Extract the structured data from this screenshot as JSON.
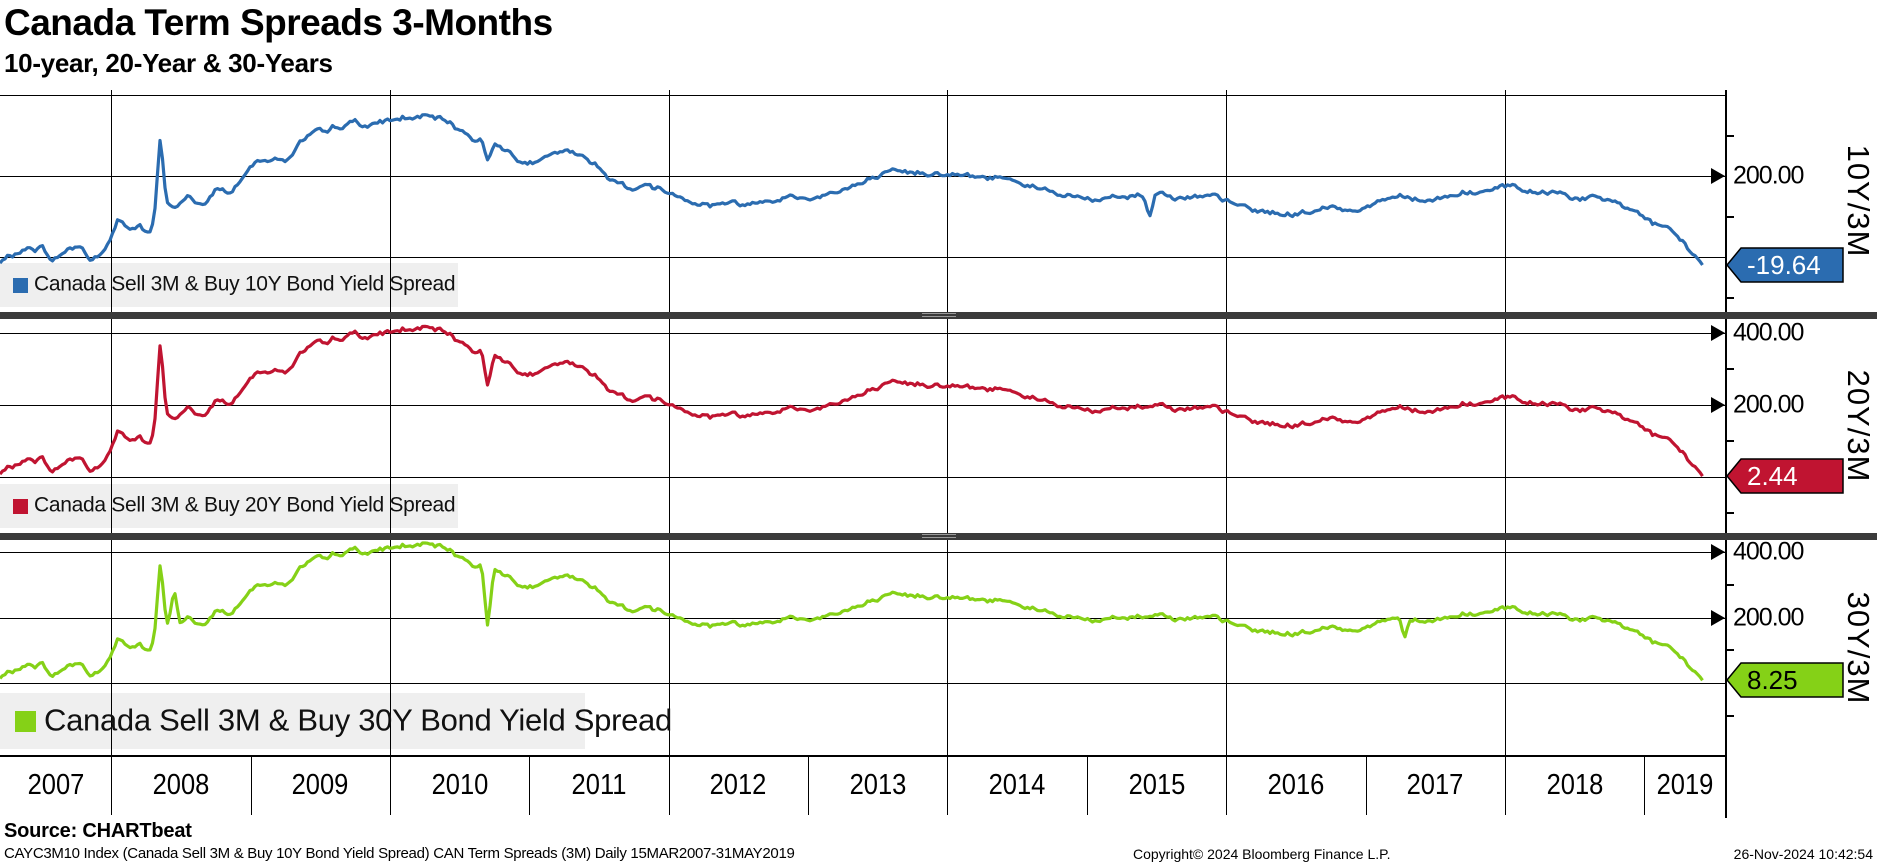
{
  "header": {
    "title": "Canada Term Spreads 3-Months",
    "subtitle": "10-year, 20-Year & 30-Years"
  },
  "footer": {
    "source": "Source: CHARTbeat",
    "ticker_line": "CAYC3M10 Index (Canada Sell 3M & Buy 10Y Bond Yield Spread) CAN Term Spreads (3M)  Daily 15MAR2007-31MAY2019",
    "copyright": "Copyright© 2024 Bloomberg Finance L.P.",
    "timestamp": "26-Nov-2024 10:42:54"
  },
  "chart_data": {
    "type": "line",
    "title": "Canada Term Spreads 3-Months",
    "subtitle": "10-year, 20-Year & 30-Years",
    "x_domain_years": [
      2007.2,
      2019.58
    ],
    "x_axis": {
      "year_labels": [
        "2007",
        "2008",
        "2009",
        "2010",
        "2011",
        "2012",
        "2013",
        "2014",
        "2015",
        "2016",
        "2017",
        "2018",
        "2019"
      ],
      "year_boundaries": [
        2008,
        2009,
        2010,
        2011,
        2012,
        2013,
        2014,
        2015,
        2016,
        2017,
        2018,
        2019
      ],
      "gridline_years": [
        2008,
        2010,
        2012,
        2014,
        2016,
        2018
      ]
    },
    "grid": "on",
    "legend_position": "inside-bottom-left",
    "base_shape_bp": [
      [
        2007.2,
        -15
      ],
      [
        2007.3,
        5
      ],
      [
        2007.4,
        18
      ],
      [
        2007.5,
        25
      ],
      [
        2007.58,
        -8
      ],
      [
        2007.7,
        22
      ],
      [
        2007.78,
        30
      ],
      [
        2007.85,
        -12
      ],
      [
        2007.95,
        15
      ],
      [
        2008.05,
        90
      ],
      [
        2008.12,
        65
      ],
      [
        2008.2,
        80
      ],
      [
        2008.28,
        55
      ],
      [
        2008.35,
        150
      ],
      [
        2008.45,
        120
      ],
      [
        2008.55,
        145
      ],
      [
        2008.65,
        125
      ],
      [
        2008.75,
        165
      ],
      [
        2008.85,
        155
      ],
      [
        2008.95,
        205
      ],
      [
        2009.05,
        235
      ],
      [
        2009.15,
        250
      ],
      [
        2009.25,
        240
      ],
      [
        2009.35,
        285
      ],
      [
        2009.45,
        305
      ],
      [
        2009.55,
        295
      ],
      [
        2009.65,
        315
      ],
      [
        2009.75,
        330
      ],
      [
        2009.85,
        320
      ],
      [
        2009.95,
        330
      ],
      [
        2010.1,
        340
      ],
      [
        2010.25,
        345
      ],
      [
        2010.4,
        328
      ],
      [
        2010.5,
        312
      ],
      [
        2010.6,
        290
      ],
      [
        2010.72,
        292
      ],
      [
        2010.85,
        262
      ],
      [
        2011.0,
        235
      ],
      [
        2011.12,
        242
      ],
      [
        2011.25,
        255
      ],
      [
        2011.38,
        238
      ],
      [
        2011.5,
        222
      ],
      [
        2011.62,
        185
      ],
      [
        2011.75,
        172
      ],
      [
        2011.85,
        182
      ],
      [
        2012.0,
        160
      ],
      [
        2012.15,
        148
      ],
      [
        2012.3,
        138
      ],
      [
        2012.45,
        142
      ],
      [
        2012.55,
        132
      ],
      [
        2012.7,
        152
      ],
      [
        2012.85,
        158
      ],
      [
        2013.0,
        145
      ],
      [
        2013.15,
        162
      ],
      [
        2013.3,
        178
      ],
      [
        2013.45,
        188
      ],
      [
        2013.55,
        198
      ],
      [
        2013.7,
        192
      ],
      [
        2013.85,
        205
      ],
      [
        2014.0,
        213
      ],
      [
        2014.15,
        203
      ],
      [
        2014.3,
        194
      ],
      [
        2014.45,
        200
      ],
      [
        2014.6,
        185
      ],
      [
        2014.75,
        172
      ],
      [
        2014.9,
        152
      ],
      [
        2015.05,
        140
      ],
      [
        2015.2,
        152
      ],
      [
        2015.35,
        158
      ],
      [
        2015.5,
        165
      ],
      [
        2015.65,
        158
      ],
      [
        2015.8,
        150
      ],
      [
        2015.95,
        138
      ],
      [
        2016.1,
        120
      ],
      [
        2016.25,
        108
      ],
      [
        2016.4,
        102
      ],
      [
        2016.55,
        112
      ],
      [
        2016.7,
        118
      ],
      [
        2016.85,
        115
      ],
      [
        2017.0,
        128
      ],
      [
        2017.15,
        148
      ],
      [
        2017.3,
        158
      ],
      [
        2017.45,
        150
      ],
      [
        2017.6,
        157
      ],
      [
        2017.75,
        168
      ],
      [
        2017.9,
        158
      ],
      [
        2018.05,
        168
      ],
      [
        2018.2,
        152
      ],
      [
        2018.35,
        158
      ],
      [
        2018.5,
        152
      ],
      [
        2018.65,
        142
      ],
      [
        2018.8,
        130
      ],
      [
        2018.95,
        112
      ],
      [
        2019.1,
        72
      ],
      [
        2019.25,
        38
      ],
      [
        2019.35,
        5
      ],
      [
        2019.42,
        -19.64
      ]
    ],
    "series": [
      {
        "name": "Canada Sell 3M & Buy 10Y Bond Yield Spread",
        "axis_label": "10Y/3M",
        "color": "#2B6CB0",
        "badge_fill": "#2B6CB0",
        "badge_text_color": "#FFFFFF",
        "last_value_label": "-19.64",
        "last_value": -19.64,
        "scale": 1.0,
        "offset": 0,
        "yticks_labeled": [
          200
        ],
        "yticks_grid": [
          400,
          200,
          0
        ],
        "yticks_minor": [
          300,
          100,
          -100
        ],
        "ylim": [
          -135,
          412
        ],
        "spikes": [
          [
            2008.35,
            140
          ],
          [
            2010.7,
            -45
          ],
          [
            2015.45,
            -55
          ]
        ]
      },
      {
        "name": "Canada Sell 3M & Buy 20Y Bond Yield Spread",
        "axis_label": "20Y/3M",
        "color": "#C01431",
        "badge_fill": "#C01431",
        "badge_text_color": "#FFFFFF",
        "last_value_label": "2.44",
        "last_value": 2.44,
        "scale": 1.12,
        "offset": 25,
        "yticks_labeled": [
          400,
          200
        ],
        "yticks_grid": [
          400,
          200,
          0
        ],
        "yticks_minor": [
          300,
          100,
          -100
        ],
        "ylim": [
          -155,
          438
        ],
        "spikes": [
          [
            2008.35,
            175
          ],
          [
            2010.7,
            -90
          ]
        ]
      },
      {
        "name": "Canada Sell 3M & Buy 30Y Bond Yield Spread",
        "axis_label": "30Y/3M",
        "color": "#85D117",
        "badge_fill": "#85D117",
        "badge_text_color": "#000000",
        "last_value_label": "8.25",
        "last_value": 8.25,
        "scale": 1.13,
        "offset": 31,
        "yticks_labeled": [
          400,
          200
        ],
        "yticks_grid": [
          400,
          200,
          0
        ],
        "yticks_minor": [
          300,
          100,
          -100
        ],
        "ylim": [
          -215,
          436
        ],
        "spikes": [
          [
            2008.35,
            160
          ],
          [
            2008.45,
            120
          ],
          [
            2010.7,
            -180
          ],
          [
            2017.28,
            -60
          ]
        ]
      }
    ]
  }
}
